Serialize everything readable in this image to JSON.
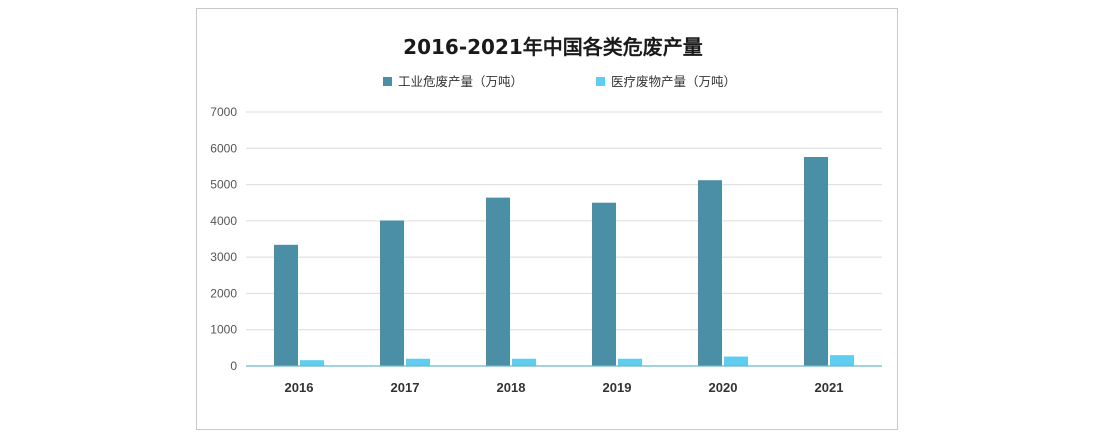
{
  "chart_data": {
    "type": "bar",
    "title": "2016-2021年中国各类危废产量",
    "categories": [
      "2016",
      "2017",
      "2018",
      "2019",
      "2020",
      "2021"
    ],
    "series": [
      {
        "name": "工业危废产量（万吨）",
        "values": [
          3340,
          4010,
          4640,
          4500,
          5120,
          5760
        ],
        "color": "#4a8fa6"
      },
      {
        "name": "医疗废物产量（万吨）",
        "values": [
          160,
          200,
          200,
          200,
          260,
          300
        ],
        "color": "#5fcdf0"
      }
    ],
    "ylim": [
      0,
      7000
    ],
    "yticks": [
      "0",
      "1000",
      "2000",
      "3000",
      "4000",
      "5000",
      "6000",
      "7000"
    ],
    "grid": true,
    "legend_position": "top"
  }
}
